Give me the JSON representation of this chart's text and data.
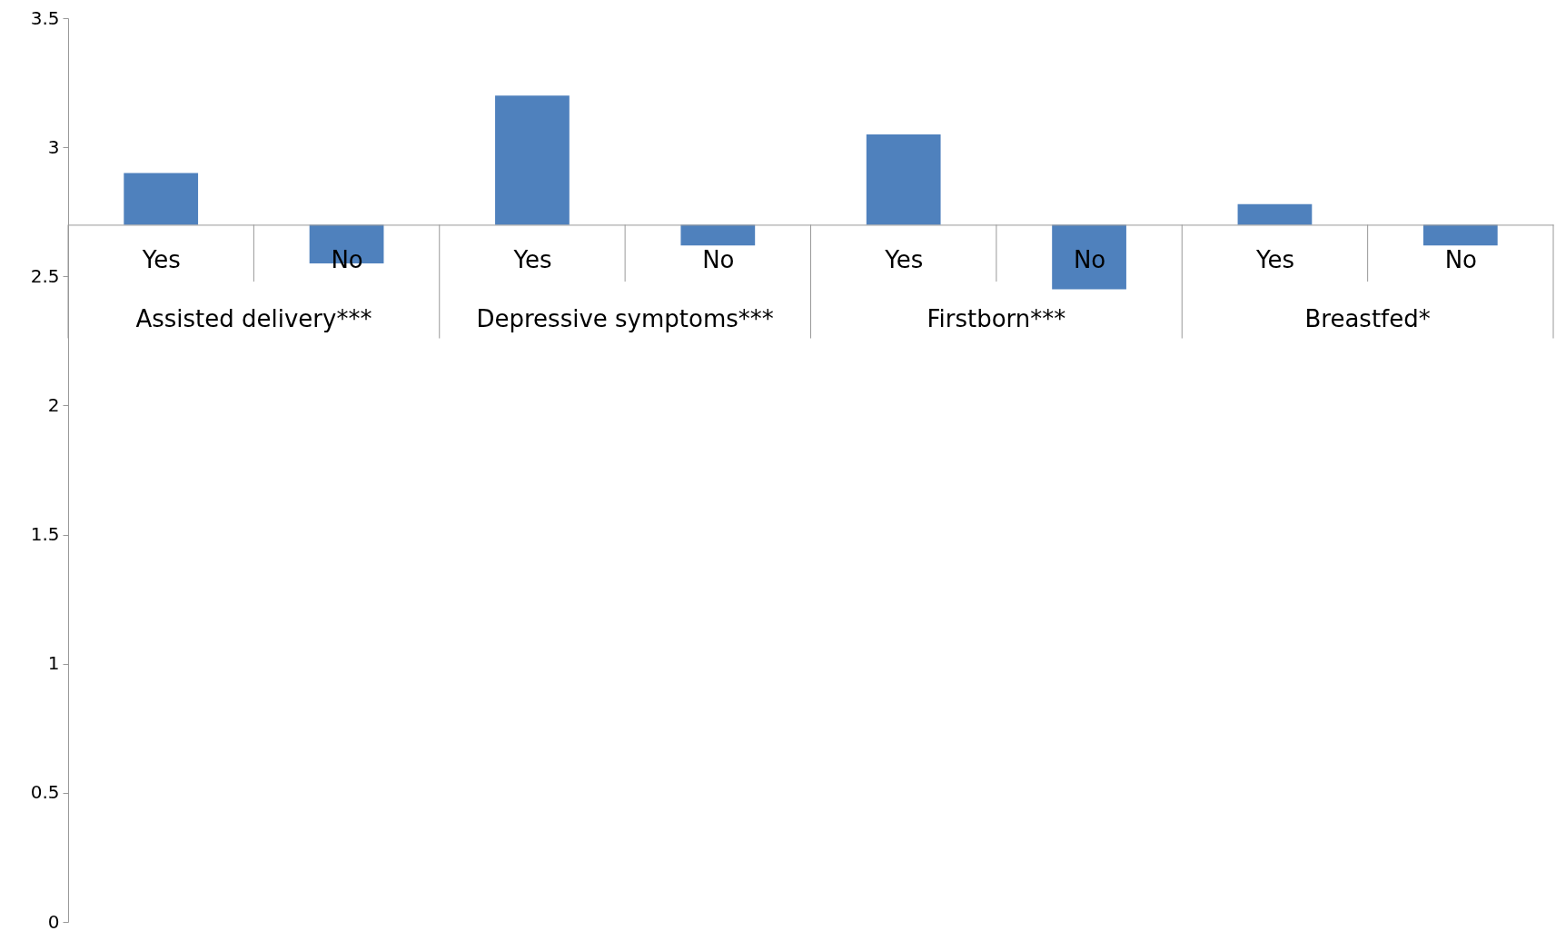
{
  "chart_data": {
    "type": "bar",
    "categories": [
      "Yes",
      "No",
      "Yes",
      "No",
      "Yes",
      "No",
      "Yes",
      "No"
    ],
    "base": [
      2.7,
      2.7,
      2.7,
      2.7,
      2.7,
      2.7,
      2.7,
      2.7
    ],
    "values": [
      0.2,
      -0.15,
      0.5,
      -0.08,
      0.35,
      -0.25,
      0.08,
      -0.08
    ],
    "color": "#4f81bd",
    "ylim": [
      0,
      3.5
    ],
    "yticks": [
      0,
      0.5,
      1,
      1.5,
      2,
      2.5,
      3,
      3.5
    ],
    "annotations": [
      "Assisted delivery***",
      "Depressive symptoms***",
      "Firstborn***",
      "Breastfed*"
    ]
  }
}
